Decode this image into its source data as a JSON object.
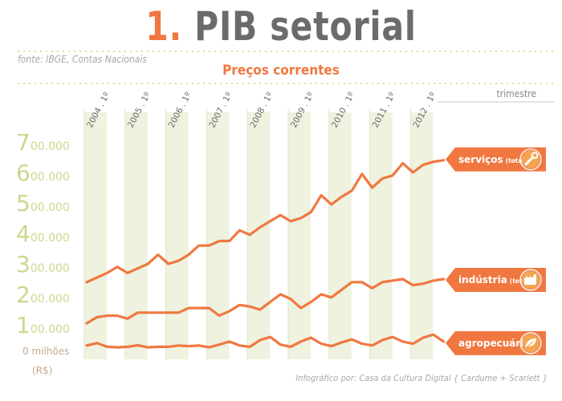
{
  "title_number": "1.",
  "title_text": "PIB setorial",
  "source": "fonte: IBGE, Contas Nacionais",
  "subtitle": "Preços correntes",
  "period_label": "trimestre",
  "credit": "Infográfico por: Casa da Cultura Digital { Cardume + Scarlett }",
  "colors": {
    "line": "#f07840",
    "band": "#eef2df",
    "title_gray": "#6b6b6b",
    "axis_green": "#c9d98d"
  },
  "chart_data": {
    "type": "line",
    "title": "PIB setorial",
    "subtitle": "Preços correntes",
    "xlabel": "trimestre",
    "ylabel": "milhões (R$)",
    "ylim": [
      0,
      700000
    ],
    "grid": false,
    "x": [
      "2004.1",
      "2004.2",
      "2004.3",
      "2004.4",
      "2005.1",
      "2005.2",
      "2005.3",
      "2005.4",
      "2006.1",
      "2006.2",
      "2006.3",
      "2006.4",
      "2007.1",
      "2007.2",
      "2007.3",
      "2007.4",
      "2008.1",
      "2008.2",
      "2008.3",
      "2008.4",
      "2009.1",
      "2009.2",
      "2009.3",
      "2009.4",
      "2010.1",
      "2010.2",
      "2010.3",
      "2010.4",
      "2011.1",
      "2011.2",
      "2011.3",
      "2011.4",
      "2012.1",
      "2012.2",
      "2012.3",
      "2012.4"
    ],
    "year_labels": [
      "2004 . 1º",
      "2005 . 1º",
      "2006 . 1º",
      "2007 . 1º",
      "2008 . 1º",
      "2009 . 1º",
      "2010 . 1º",
      "2011 . 1º",
      "2012 . 1º"
    ],
    "y_ticks": [
      {
        "big": "7",
        "rest": "00.000"
      },
      {
        "big": "6",
        "rest": "00.000"
      },
      {
        "big": "5",
        "rest": "00.000"
      },
      {
        "big": "4",
        "rest": "00.000"
      },
      {
        "big": "3",
        "rest": "00.000"
      },
      {
        "big": "2",
        "rest": "00.000"
      },
      {
        "big": "1",
        "rest": "00.000"
      }
    ],
    "y_zero_label": "0 milhões",
    "y_zero_unit": "(R$)",
    "series": [
      {
        "name": "serviços",
        "qualifier": "(total)",
        "icon": "wrench-icon",
        "values": [
          240000,
          255000,
          270000,
          290000,
          270000,
          285000,
          300000,
          330000,
          300000,
          310000,
          330000,
          360000,
          360000,
          375000,
          375000,
          410000,
          395000,
          420000,
          440000,
          460000,
          440000,
          450000,
          470000,
          525000,
          495000,
          520000,
          540000,
          595000,
          550000,
          580000,
          590000,
          630000,
          600000,
          625000,
          635000,
          640000
        ]
      },
      {
        "name": "indústria",
        "qualifier": "(total)",
        "icon": "factory-icon",
        "values": [
          105000,
          125000,
          130000,
          130000,
          120000,
          140000,
          140000,
          140000,
          140000,
          140000,
          155000,
          155000,
          155000,
          130000,
          145000,
          165000,
          160000,
          150000,
          175000,
          200000,
          185000,
          155000,
          175000,
          200000,
          190000,
          215000,
          240000,
          240000,
          220000,
          240000,
          245000,
          250000,
          230000,
          235000,
          245000,
          250000
        ]
      },
      {
        "name": "agropecuária",
        "qualifier": "",
        "icon": "leaf-icon",
        "values": [
          32000,
          40000,
          28000,
          26000,
          28000,
          33000,
          26000,
          28000,
          28000,
          32000,
          30000,
          32000,
          26000,
          35000,
          45000,
          32000,
          28000,
          50000,
          60000,
          35000,
          28000,
          45000,
          58000,
          38000,
          30000,
          42000,
          52000,
          38000,
          32000,
          50000,
          60000,
          45000,
          38000,
          58000,
          68000,
          45000
        ]
      }
    ]
  }
}
